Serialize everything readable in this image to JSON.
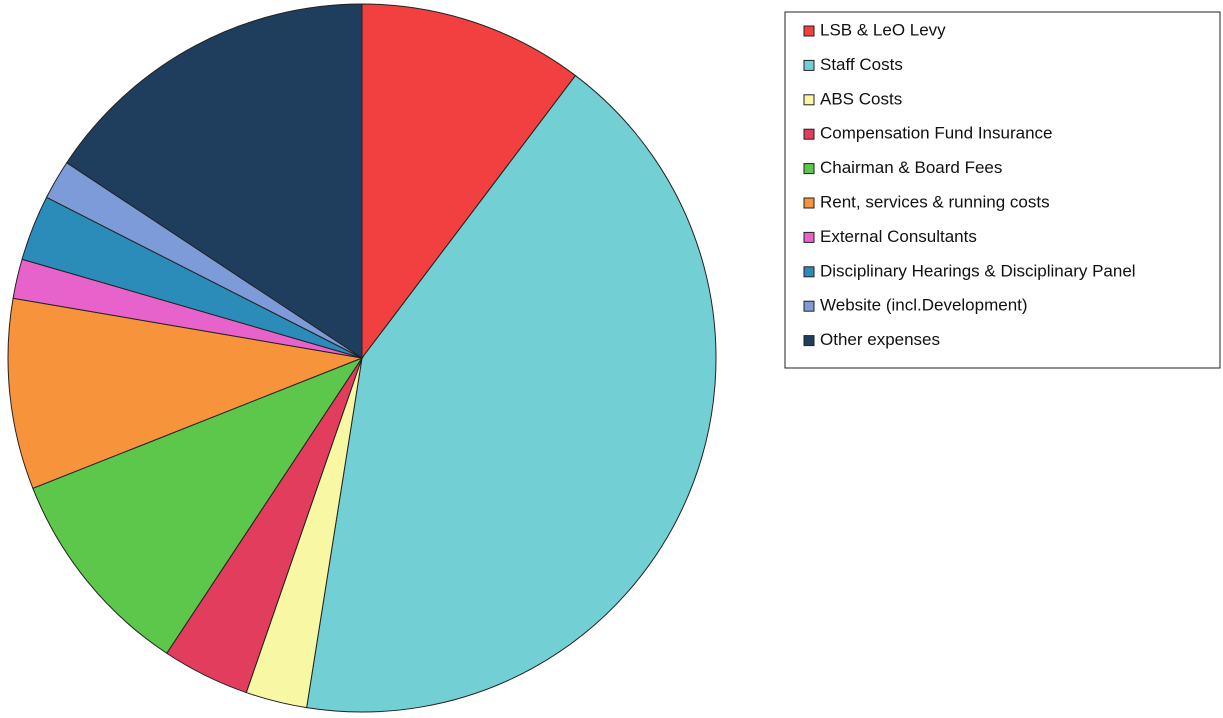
{
  "chart_data": {
    "type": "pie",
    "categories": [
      "LSB & LeO Levy",
      "Staff Costs",
      "ABS Costs",
      "Compensation Fund Insurance",
      "Chairman & Board Fees",
      "Rent, services & running costs",
      "External Consultants",
      "Disciplinary Hearings & Disciplinary Panel",
      "Website (incl.Development)",
      "Other expenses"
    ],
    "values": [
      10.3,
      42.2,
      2.8,
      4.0,
      9.7,
      8.7,
      1.8,
      3.0,
      1.8,
      15.7
    ],
    "colors": [
      "#f23f3f",
      "#72d0d4",
      "#f8f8a4",
      "#e23d5c",
      "#5cc74b",
      "#f7933b",
      "#e862cb",
      "#2b8bb9",
      "#7d9bd9",
      "#1f3e5d"
    ],
    "legend": "right"
  }
}
